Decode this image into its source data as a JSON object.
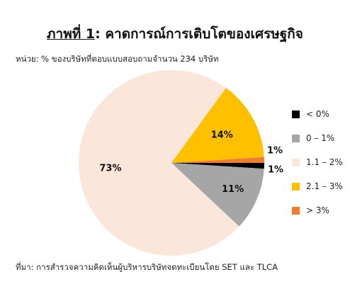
{
  "header": {
    "title_label": "ภาพที่ 1",
    "title_text": ": คาดการณ์การเติบโตของเศรษฐกิจ",
    "subtitle": "หน่วย: % ของบริษัทที่ตอบแบบสอบถามจำนวน 234 บริษัท"
  },
  "footer": {
    "source": "ที่มา: การสำรวจความคิดเห็นผู้บริหารบริษัทจดทะเบียนโดย SET และ TLCA"
  },
  "chart_data": {
    "type": "pie",
    "categories": [
      "< 0%",
      "0 – 1%",
      "1.1 – 2%",
      "2.1 – 3%",
      "> 3%"
    ],
    "values": [
      1,
      11,
      73,
      14,
      1
    ],
    "labels": [
      "1%",
      "11%",
      "73%",
      "14%",
      "1%"
    ],
    "colors": [
      "#000000",
      "#a6a6a6",
      "#fbe6dc",
      "#ffc000",
      "#ed7d31"
    ],
    "legend_position": "right"
  }
}
